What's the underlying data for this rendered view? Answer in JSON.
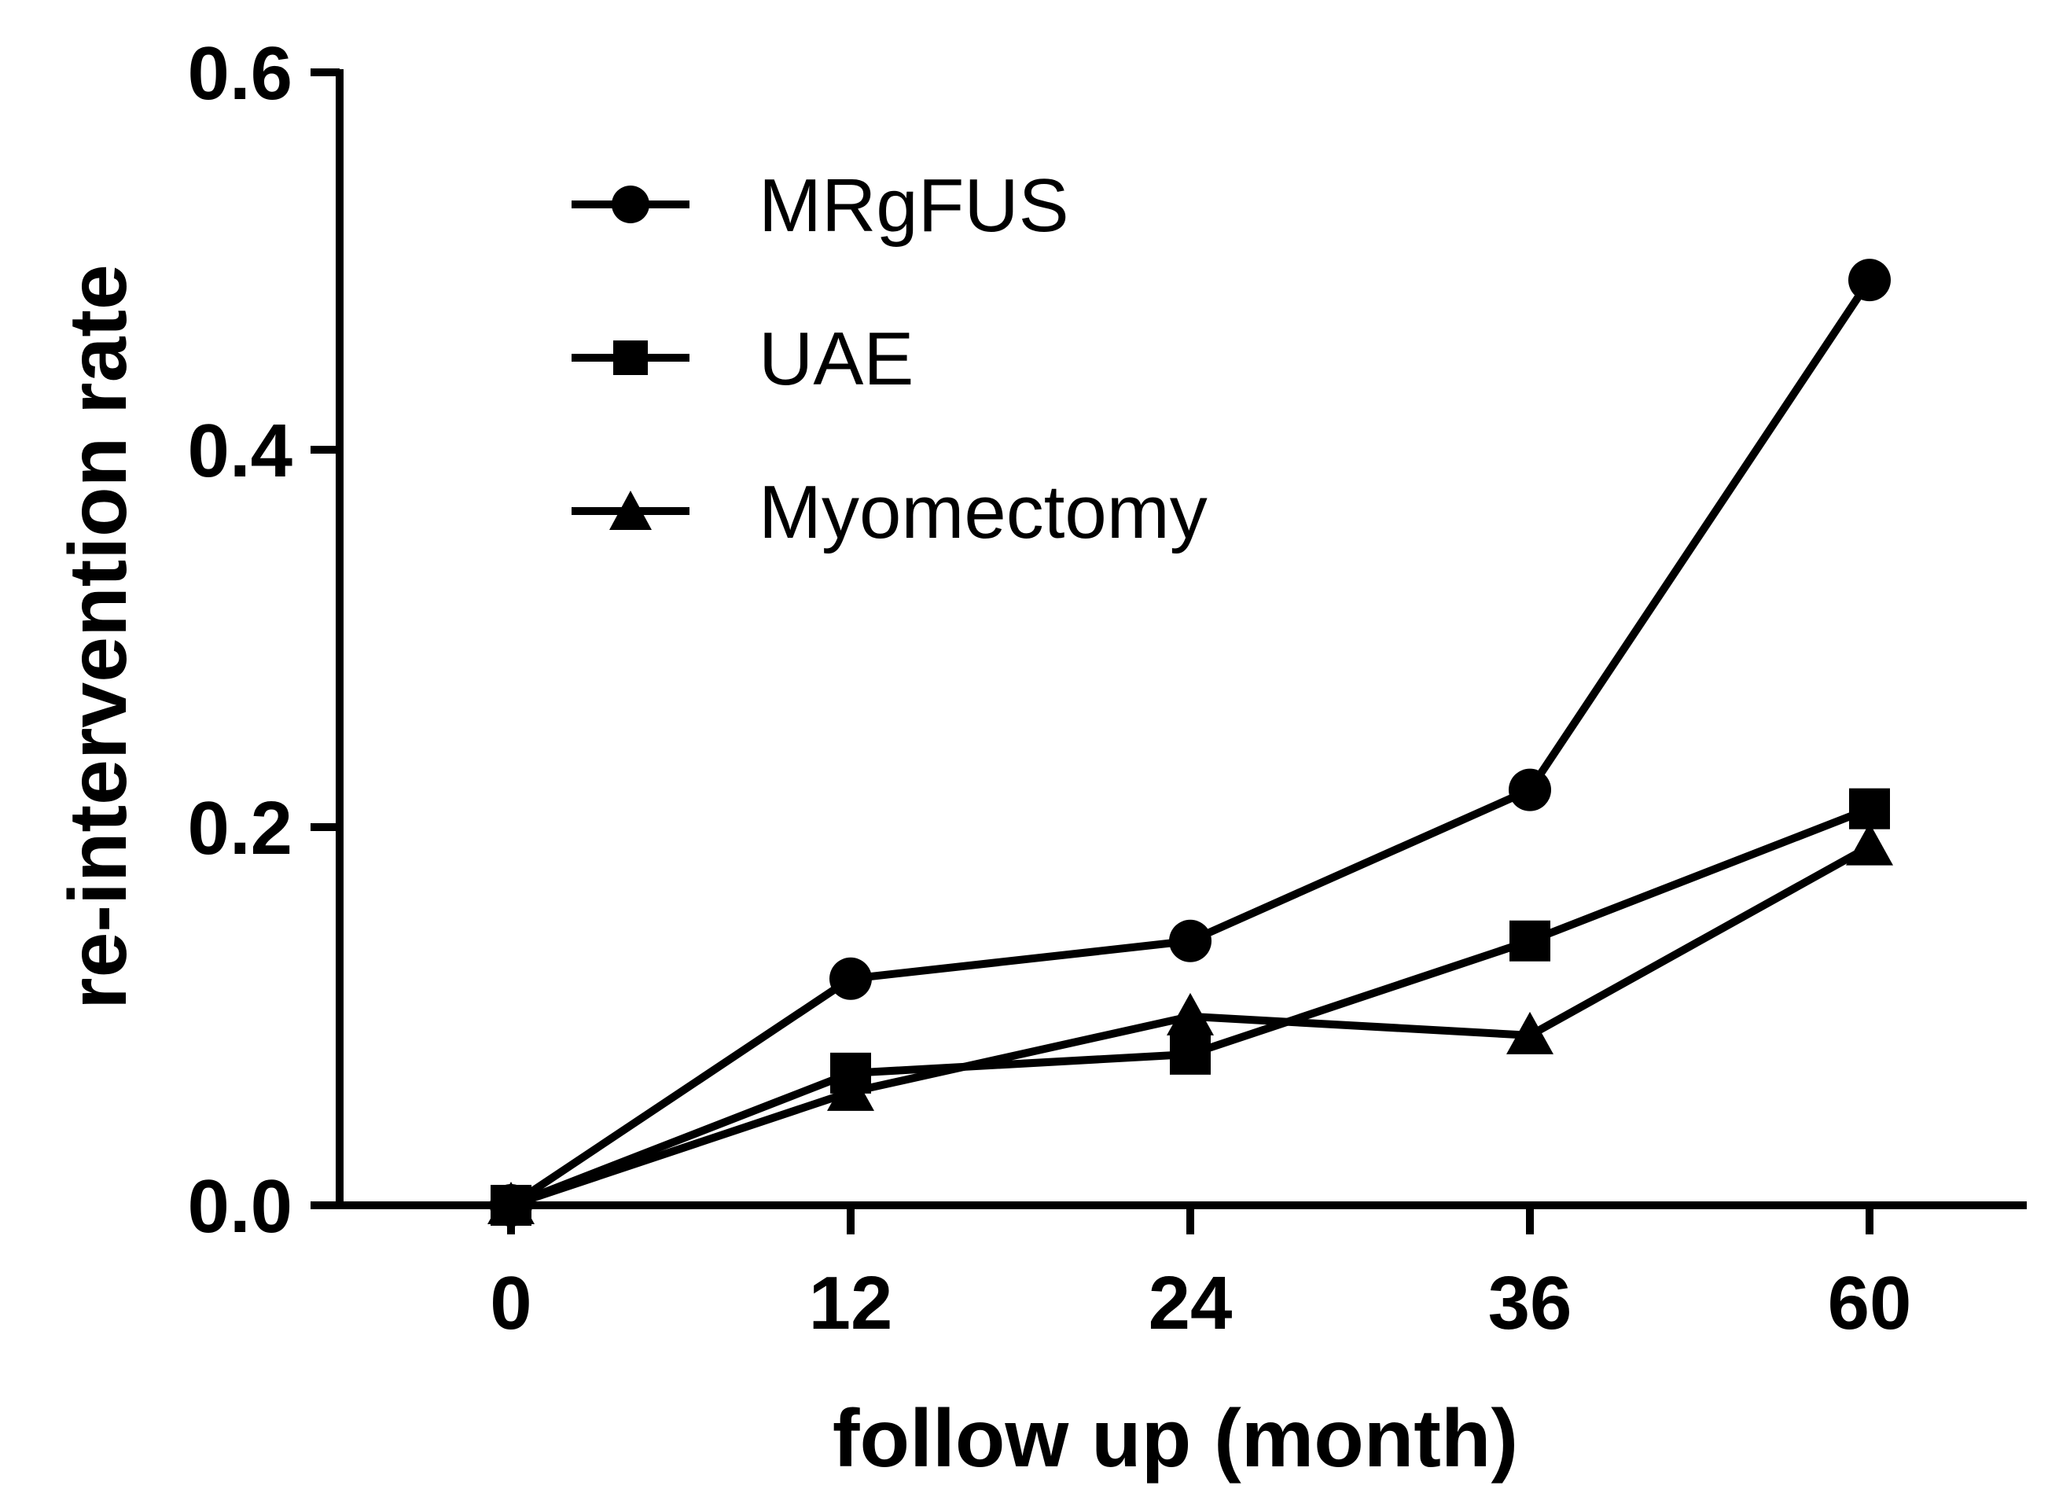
{
  "chart_data": {
    "type": "line",
    "title": "",
    "xlabel": "follow up (month)",
    "ylabel": "re-intervention rate",
    "categories": [
      "0",
      "12",
      "24",
      "36",
      "60"
    ],
    "ylim": [
      0.0,
      0.6
    ],
    "yticks": [
      "0.0",
      "0.2",
      "0.4",
      "0.6"
    ],
    "ytick_values": [
      0.0,
      0.2,
      0.4,
      0.6
    ],
    "grid": false,
    "legend_position": "top-left",
    "series": [
      {
        "name": "MRgFUS",
        "marker": "circle",
        "values": [
          0.0,
          0.12,
          0.14,
          0.22,
          0.49
        ]
      },
      {
        "name": "UAE",
        "marker": "square",
        "values": [
          0.0,
          0.07,
          0.08,
          0.14,
          0.21
        ]
      },
      {
        "name": "Myomectomy",
        "marker": "triangle",
        "values": [
          0.0,
          0.06,
          0.1,
          0.09,
          0.19
        ]
      }
    ],
    "colors": {
      "line": "#000000",
      "background": "#ffffff"
    }
  }
}
